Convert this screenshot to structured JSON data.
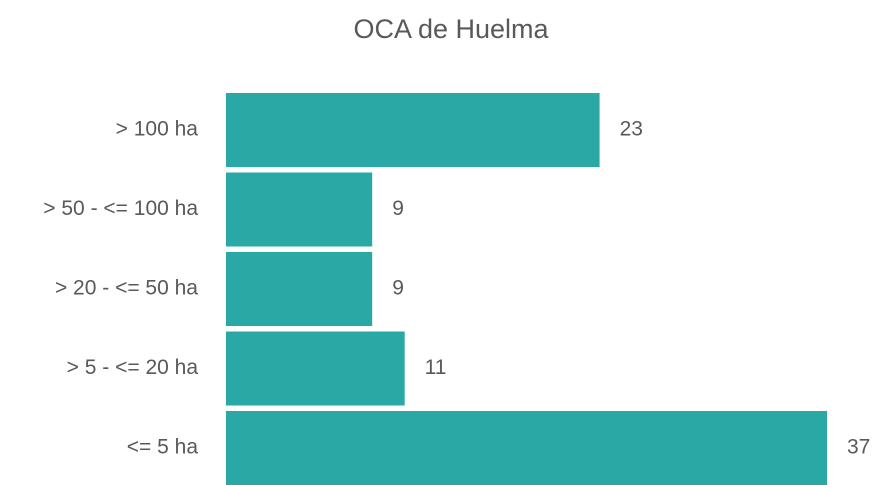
{
  "chart_data": {
    "type": "bar",
    "orientation": "horizontal",
    "title": "OCA de Huelma",
    "categories": [
      "> 100 ha",
      "> 50 - <= 100 ha",
      "> 20 - <= 50 ha",
      "> 5 - <= 20 ha",
      "<= 5 ha"
    ],
    "values": [
      23,
      9,
      9,
      11,
      37
    ],
    "color": "#2aa8a5",
    "data_labels": true
  }
}
